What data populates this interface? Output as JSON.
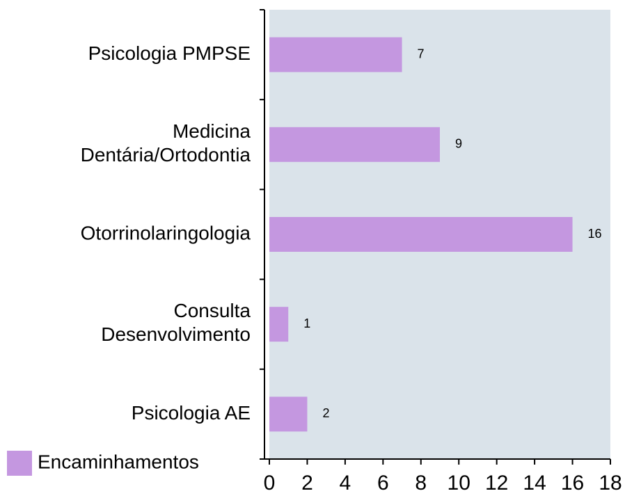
{
  "chart_data": {
    "type": "bar",
    "orientation": "horizontal",
    "categories": [
      "Psicologia PMPSE",
      "Medicina\nDentária/Ortodontia",
      "Otorrinolaringologia",
      "Consulta\nDesenvolvimento",
      "Psicologia AE"
    ],
    "series": [
      {
        "name": "Encaminhamentos",
        "color": "#c497e0",
        "values": [
          7,
          9,
          16,
          1,
          2
        ]
      }
    ],
    "xlim": [
      0,
      18
    ],
    "xticks": [
      0,
      2,
      4,
      6,
      8,
      10,
      12,
      14,
      16,
      18
    ],
    "legend": "bottom-left"
  }
}
